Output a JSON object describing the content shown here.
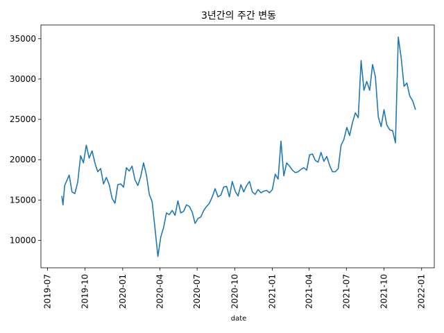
{
  "chart_data": {
    "type": "line",
    "title": "3년간의 주간 변동",
    "xlabel": "date",
    "ylabel": "",
    "grid": false,
    "legend": "none",
    "xlim": [
      "2019-06-15",
      "2022-02-01"
    ],
    "ylim": [
      6600,
      36700
    ],
    "x_ticks": [
      "2019-07",
      "2019-10",
      "2020-01",
      "2020-04",
      "2020-07",
      "2020-10",
      "2021-01",
      "2021-04",
      "2021-07",
      "2021-10",
      "2022-01"
    ],
    "y_ticks": [
      10000,
      15000,
      20000,
      25000,
      30000,
      35000
    ],
    "series": [
      {
        "color": "#1f77b4",
        "x": [
          "2019-08-05",
          "2019-08-08",
          "2019-08-12",
          "2019-08-19",
          "2019-08-23",
          "2019-08-30",
          "2019-09-06",
          "2019-09-13",
          "2019-09-20",
          "2019-09-27",
          "2019-10-04",
          "2019-10-11",
          "2019-10-18",
          "2019-10-25",
          "2019-11-01",
          "2019-11-08",
          "2019-11-15",
          "2019-11-22",
          "2019-11-29",
          "2019-12-06",
          "2019-12-13",
          "2019-12-20",
          "2019-12-27",
          "2020-01-03",
          "2020-01-10",
          "2020-01-17",
          "2020-01-24",
          "2020-01-31",
          "2020-02-07",
          "2020-02-14",
          "2020-02-21",
          "2020-02-28",
          "2020-03-06",
          "2020-03-13",
          "2020-03-20",
          "2020-03-27",
          "2020-04-03",
          "2020-04-10",
          "2020-04-17",
          "2020-04-24",
          "2020-05-01",
          "2020-05-08",
          "2020-05-15",
          "2020-05-22",
          "2020-05-29",
          "2020-06-05",
          "2020-06-12",
          "2020-06-19",
          "2020-06-26",
          "2020-07-03",
          "2020-07-10",
          "2020-07-17",
          "2020-07-24",
          "2020-07-31",
          "2020-08-07",
          "2020-08-14",
          "2020-08-21",
          "2020-08-28",
          "2020-09-04",
          "2020-09-11",
          "2020-09-18",
          "2020-09-25",
          "2020-10-02",
          "2020-10-09",
          "2020-10-16",
          "2020-10-23",
          "2020-10-30",
          "2020-11-06",
          "2020-11-13",
          "2020-11-20",
          "2020-11-27",
          "2020-12-04",
          "2020-12-11",
          "2020-12-18",
          "2020-12-25",
          "2021-01-01",
          "2021-01-08",
          "2021-01-15",
          "2021-01-22",
          "2021-01-29",
          "2021-02-05",
          "2021-02-12",
          "2021-02-19",
          "2021-02-26",
          "2021-03-05",
          "2021-03-12",
          "2021-03-19",
          "2021-03-26",
          "2021-04-02",
          "2021-04-09",
          "2021-04-16",
          "2021-04-23",
          "2021-04-30",
          "2021-05-07",
          "2021-05-14",
          "2021-05-21",
          "2021-05-28",
          "2021-06-04",
          "2021-06-11",
          "2021-06-18",
          "2021-06-25",
          "2021-07-02",
          "2021-07-09",
          "2021-07-16",
          "2021-07-23",
          "2021-07-30",
          "2021-08-06",
          "2021-08-13",
          "2021-08-20",
          "2021-08-27",
          "2021-09-03",
          "2021-09-10",
          "2021-09-17",
          "2021-09-24",
          "2021-10-01",
          "2021-10-08",
          "2021-10-15",
          "2021-10-22",
          "2021-10-29",
          "2021-11-05",
          "2021-11-12",
          "2021-11-19",
          "2021-11-26",
          "2021-12-03",
          "2021-12-10",
          "2021-12-17"
        ],
        "y": [
          15500,
          14400,
          16800,
          17600,
          18100,
          16000,
          15800,
          17200,
          20500,
          19600,
          21800,
          20200,
          21100,
          19600,
          18500,
          18900,
          17000,
          17800,
          16900,
          15200,
          14600,
          16900,
          17000,
          16600,
          19000,
          18600,
          19200,
          17500,
          16800,
          17900,
          19600,
          18100,
          15700,
          14800,
          11500,
          8000,
          10400,
          11600,
          13400,
          13200,
          13700,
          13100,
          14900,
          13400,
          13600,
          14400,
          14200,
          13500,
          12100,
          12700,
          12900,
          13700,
          14200,
          14600,
          15400,
          16400,
          15400,
          15600,
          16600,
          16700,
          15400,
          17300,
          16100,
          15500,
          16900,
          16000,
          16800,
          17300,
          16000,
          15700,
          16300,
          15900,
          16100,
          16200,
          15900,
          16300,
          18200,
          17600,
          22300,
          18000,
          19600,
          19200,
          18700,
          18400,
          18500,
          18800,
          19000,
          18700,
          20600,
          20700,
          19900,
          19700,
          20900,
          19800,
          20400,
          19300,
          18500,
          18500,
          18900,
          21800,
          22500,
          24000,
          23000,
          24600,
          25800,
          25200,
          32300,
          28600,
          29700,
          28600,
          31800,
          30300,
          25300,
          24100,
          26200,
          24300,
          23700,
          23600,
          22100,
          35200,
          32600,
          29100,
          29500,
          27900,
          27300,
          26200
        ]
      }
    ]
  }
}
